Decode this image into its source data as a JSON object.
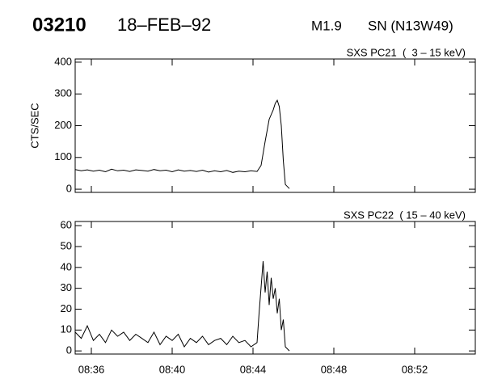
{
  "header": {
    "id": "03210",
    "date": "18–FEB–92",
    "class": "M1.9",
    "location": "SN (N13W49)"
  },
  "chart_data": [
    {
      "type": "line",
      "title": "SXS PC21  (  3 – 15 keV)",
      "ylabel": "CTS/SEC",
      "color": "#000000",
      "xlim": [
        35.2,
        55
      ],
      "xticks": [
        36,
        40,
        44,
        48,
        52
      ],
      "ylim": [
        -10,
        410
      ],
      "yticks": [
        0,
        100,
        200,
        300,
        400
      ],
      "x": [
        35.2,
        35.5,
        35.8,
        36.1,
        36.4,
        36.7,
        37.0,
        37.3,
        37.6,
        37.9,
        38.2,
        38.5,
        38.8,
        39.1,
        39.4,
        39.7,
        40.0,
        40.3,
        40.6,
        40.9,
        41.2,
        41.5,
        41.8,
        42.1,
        42.4,
        42.7,
        43.0,
        43.3,
        43.6,
        43.9,
        44.2,
        44.4,
        44.6,
        44.8,
        45.0,
        45.1,
        45.2,
        45.3,
        45.4,
        45.5,
        45.6,
        45.8
      ],
      "values": [
        62,
        58,
        61,
        57,
        60,
        55,
        63,
        58,
        60,
        56,
        61,
        59,
        57,
        62,
        58,
        60,
        55,
        61,
        57,
        59,
        56,
        60,
        54,
        58,
        55,
        59,
        53,
        57,
        55,
        58,
        56,
        75,
        150,
        220,
        250,
        270,
        280,
        260,
        200,
        90,
        15,
        2
      ]
    },
    {
      "type": "line",
      "title": "SXS PC22  ( 15 – 40 keV)",
      "color": "#000000",
      "xlim": [
        35.2,
        55
      ],
      "xticks": [
        {
          "value": 36,
          "label": "08:36"
        },
        {
          "value": 40,
          "label": "08:40"
        },
        {
          "value": 44,
          "label": "08:44"
        },
        {
          "value": 48,
          "label": "08:48"
        },
        {
          "value": 52,
          "label": "08:52"
        }
      ],
      "ylim": [
        -1.5,
        62
      ],
      "yticks": [
        0,
        10,
        20,
        30,
        40,
        50,
        60
      ],
      "x": [
        35.2,
        35.5,
        35.8,
        36.1,
        36.4,
        36.7,
        37.0,
        37.3,
        37.6,
        37.9,
        38.2,
        38.5,
        38.8,
        39.1,
        39.4,
        39.7,
        40.0,
        40.3,
        40.6,
        40.9,
        41.2,
        41.5,
        41.8,
        42.1,
        42.4,
        42.7,
        43.0,
        43.3,
        43.6,
        43.9,
        44.2,
        44.3,
        44.5,
        44.6,
        44.7,
        44.8,
        44.9,
        45.0,
        45.1,
        45.2,
        45.3,
        45.4,
        45.5,
        45.6,
        45.8
      ],
      "values": [
        9,
        6,
        12,
        5,
        8,
        4,
        10,
        7,
        9,
        5,
        8,
        6,
        4,
        9,
        3,
        7,
        5,
        8,
        2,
        6,
        4,
        7,
        3,
        5,
        6,
        3,
        7,
        4,
        5,
        2,
        4,
        18,
        43,
        28,
        38,
        22,
        35,
        25,
        30,
        18,
        25,
        10,
        15,
        2,
        0
      ]
    }
  ]
}
